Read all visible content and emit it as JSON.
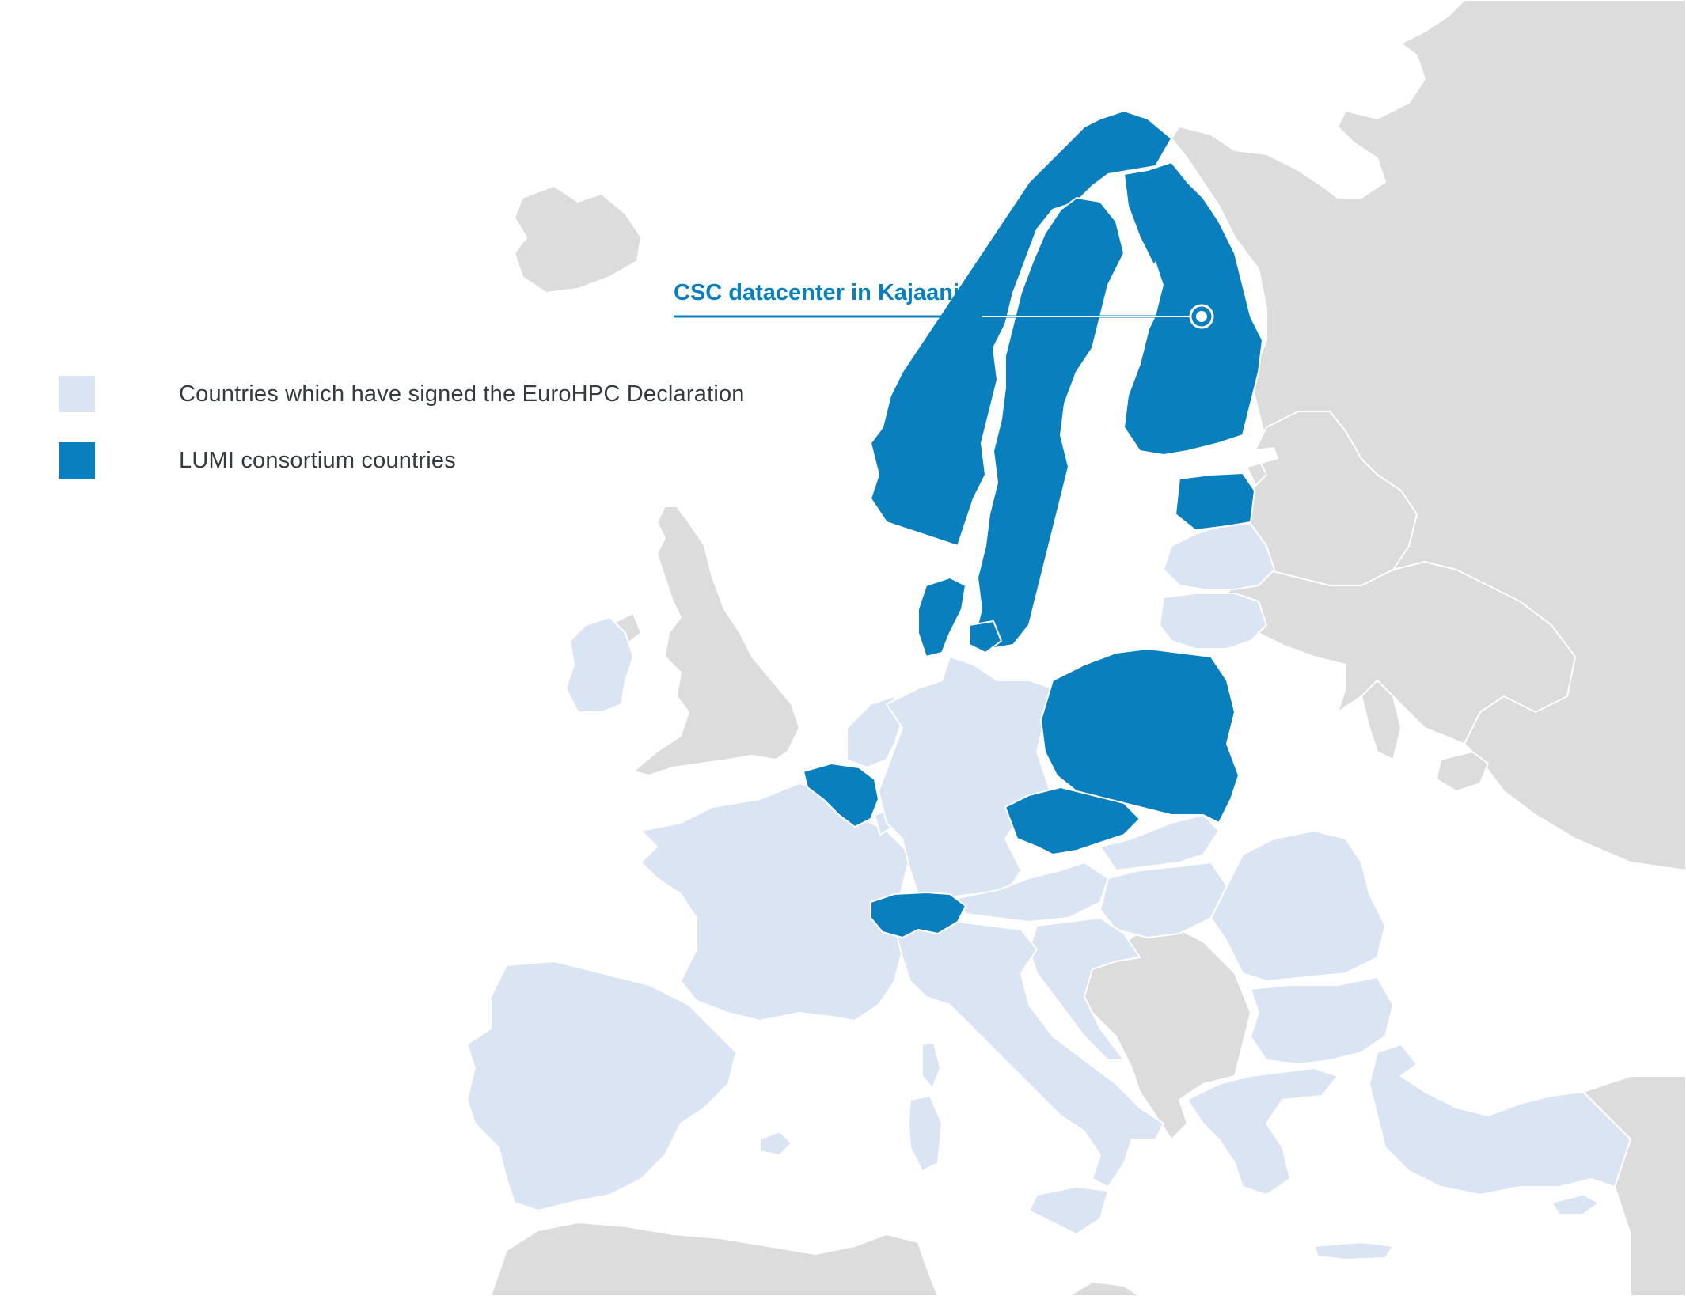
{
  "colors": {
    "background": "#ffffff",
    "other_land": "#dcdcdc",
    "signatory": "#dae4f2",
    "lumi": "#0a7fbe",
    "border": "#ffffff",
    "legend_text": "#333a40"
  },
  "legend": {
    "items": [
      {
        "label": "Countries which have signed the EuroHPC Declaration",
        "color": "#dae4f2"
      },
      {
        "label": "LUMI consortium countries",
        "color": "#0a7fbe"
      }
    ]
  },
  "callout": {
    "label": "CSC datacenter in Kajaani",
    "marker_icon": "location-dot-icon"
  }
}
